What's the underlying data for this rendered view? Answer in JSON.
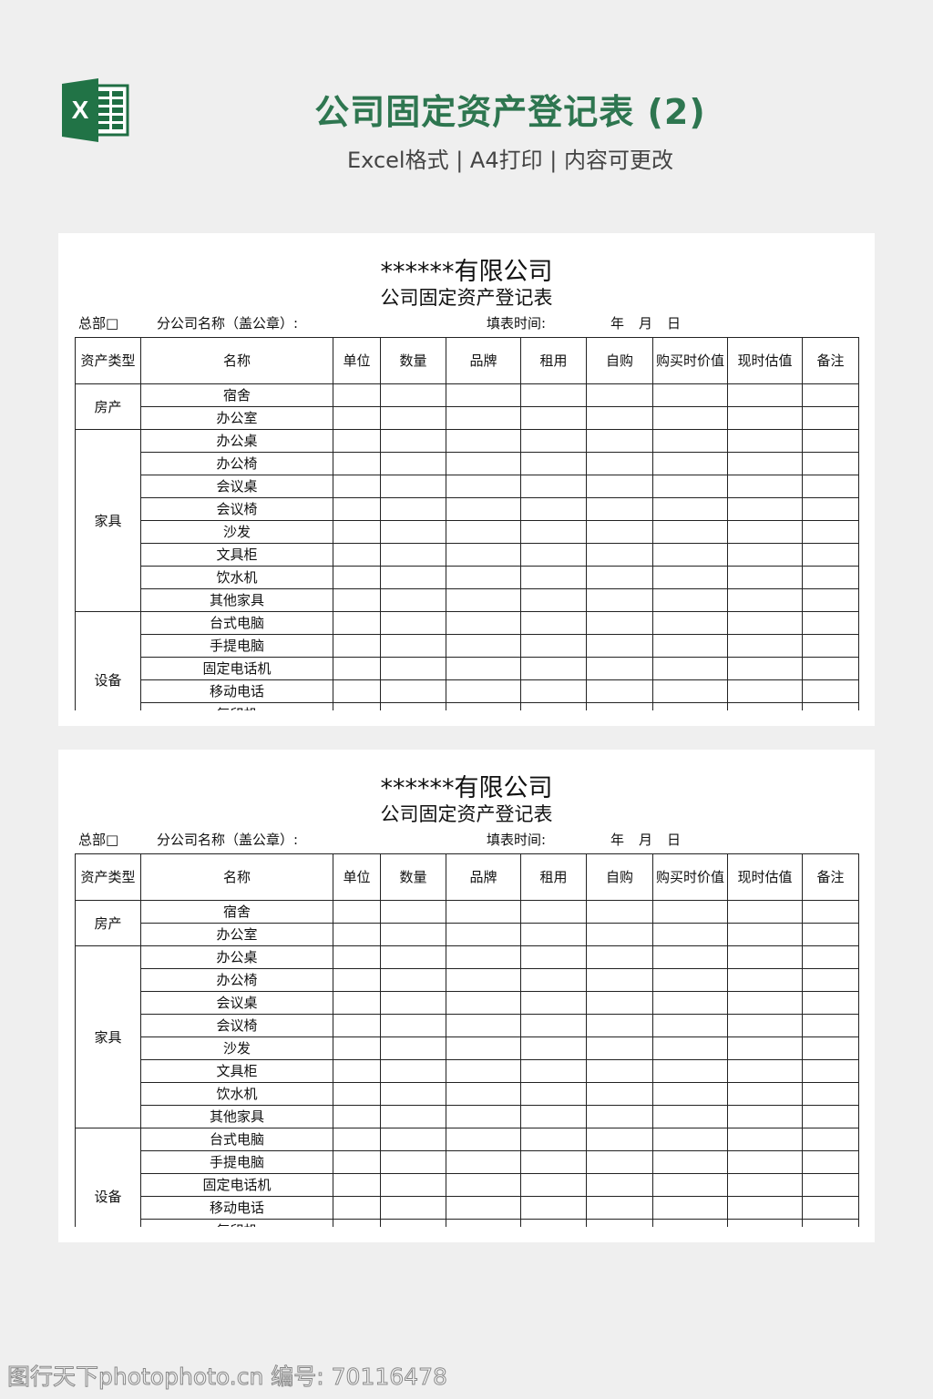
{
  "header": {
    "title": "公司固定资产登记表 (2)",
    "subtitle": "Excel格式 | A4打印 | 内容可更改",
    "logo_icon": "excel-icon",
    "accent": "#2e7650"
  },
  "sheet": {
    "company": "******有限公司",
    "form_title": "公司固定资产登记表",
    "hq": "总部□",
    "branch": "分公司名称（盖公章）:",
    "date_label": "填表时间:",
    "year": "年",
    "month": "月",
    "day": "日",
    "columns": [
      "资产类型",
      "名称",
      "单位",
      "数量",
      "品牌",
      "租用",
      "自购",
      "购买时价值",
      "现时估值",
      "备注"
    ],
    "groups": [
      {
        "type": "房产",
        "items": [
          "宿舍",
          "办公室"
        ]
      },
      {
        "type": "家具",
        "items": [
          "办公桌",
          "办公椅",
          "会议桌",
          "会议椅",
          "沙发",
          "文具柜",
          "饮水机",
          "其他家具"
        ]
      },
      {
        "type": "设备",
        "items": [
          "台式电脑",
          "手提电脑",
          "固定电话机",
          "移动电话",
          "复印机",
          ""
        ]
      }
    ]
  },
  "watermark": "图行天下photophoto.cn 编号: 70116478"
}
